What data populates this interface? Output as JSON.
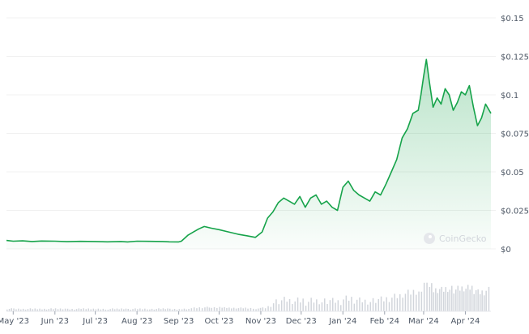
{
  "chart_data": {
    "type": "area",
    "currency_prefix": "$",
    "y_ticks": [
      "$0.15",
      "$0.125",
      "$0.1",
      "$0.075",
      "$0.05",
      "$0.025",
      "$0"
    ],
    "y_tick_values": [
      0.15,
      0.125,
      0.1,
      0.075,
      0.05,
      0.025,
      0
    ],
    "ylim": [
      0,
      0.15
    ],
    "x_ticks": [
      "May '23",
      "Jun '23",
      "Jul '23",
      "Aug '23",
      "Sep '23",
      "Oct '23",
      "Nov '23",
      "Dec '23",
      "Jan '24",
      "Feb '24",
      "Mar '24",
      "Apr '24"
    ],
    "x_tick_dates": [
      "2023-05-01",
      "2023-06-01",
      "2023-07-01",
      "2023-08-01",
      "2023-09-01",
      "2023-10-01",
      "2023-11-01",
      "2023-12-01",
      "2024-01-01",
      "2024-02-01",
      "2024-03-01",
      "2024-04-01"
    ],
    "xlim": [
      "2023-04-26",
      "2024-04-20"
    ],
    "grid": true,
    "line_color": "#16a34a",
    "fill_color": "#16a34a",
    "volume_color": "#d1d5db",
    "watermark": "CoinGecko",
    "series": [
      {
        "x": [
          "2023-04-26",
          "2023-05-01",
          "2023-05-08",
          "2023-05-15",
          "2023-05-22",
          "2023-06-01",
          "2023-06-10",
          "2023-06-20",
          "2023-07-01",
          "2023-07-10",
          "2023-07-20",
          "2023-07-25",
          "2023-08-01",
          "2023-08-10",
          "2023-08-20",
          "2023-08-25",
          "2023-09-01",
          "2023-09-03",
          "2023-09-08",
          "2023-09-12",
          "2023-09-16",
          "2023-09-20",
          "2023-09-25",
          "2023-10-01",
          "2023-10-08",
          "2023-10-15",
          "2023-10-22",
          "2023-10-28",
          "2023-11-02",
          "2023-11-06",
          "2023-11-10",
          "2023-11-14",
          "2023-11-18",
          "2023-11-22",
          "2023-11-26",
          "2023-11-30",
          "2023-12-04",
          "2023-12-08",
          "2023-12-12",
          "2023-12-16",
          "2023-12-20",
          "2023-12-24",
          "2023-12-28",
          "2024-01-01",
          "2024-01-05",
          "2024-01-09",
          "2024-01-13",
          "2024-01-17",
          "2024-01-21",
          "2024-01-25",
          "2024-01-29",
          "2024-02-02",
          "2024-02-06",
          "2024-02-10",
          "2024-02-14",
          "2024-02-18",
          "2024-02-22",
          "2024-02-26",
          "2024-02-28",
          "2024-03-01",
          "2024-03-03",
          "2024-03-05",
          "2024-03-08",
          "2024-03-11",
          "2024-03-14",
          "2024-03-17",
          "2024-03-20",
          "2024-03-23",
          "2024-03-26",
          "2024-03-29",
          "2024-04-01",
          "2024-04-04",
          "2024-04-07",
          "2024-04-10",
          "2024-04-13",
          "2024-04-16",
          "2024-04-20"
        ],
        "y": [
          0.0055,
          0.005,
          0.0052,
          0.0048,
          0.0051,
          0.005,
          0.0047,
          0.0049,
          0.0048,
          0.0046,
          0.0048,
          0.0045,
          0.005,
          0.0049,
          0.0048,
          0.0046,
          0.0045,
          0.005,
          0.009,
          0.011,
          0.013,
          0.0145,
          0.0135,
          0.0125,
          0.011,
          0.0095,
          0.0085,
          0.0075,
          0.011,
          0.02,
          0.024,
          0.03,
          0.033,
          0.031,
          0.029,
          0.034,
          0.027,
          0.033,
          0.035,
          0.029,
          0.031,
          0.027,
          0.025,
          0.04,
          0.044,
          0.038,
          0.035,
          0.033,
          0.031,
          0.037,
          0.035,
          0.042,
          0.05,
          0.058,
          0.072,
          0.078,
          0.088,
          0.09,
          0.1,
          0.112,
          0.123,
          0.11,
          0.092,
          0.098,
          0.094,
          0.104,
          0.1,
          0.09,
          0.095,
          0.102,
          0.1,
          0.106,
          0.092,
          0.08,
          0.085,
          0.094,
          0.088
        ]
      }
    ]
  }
}
